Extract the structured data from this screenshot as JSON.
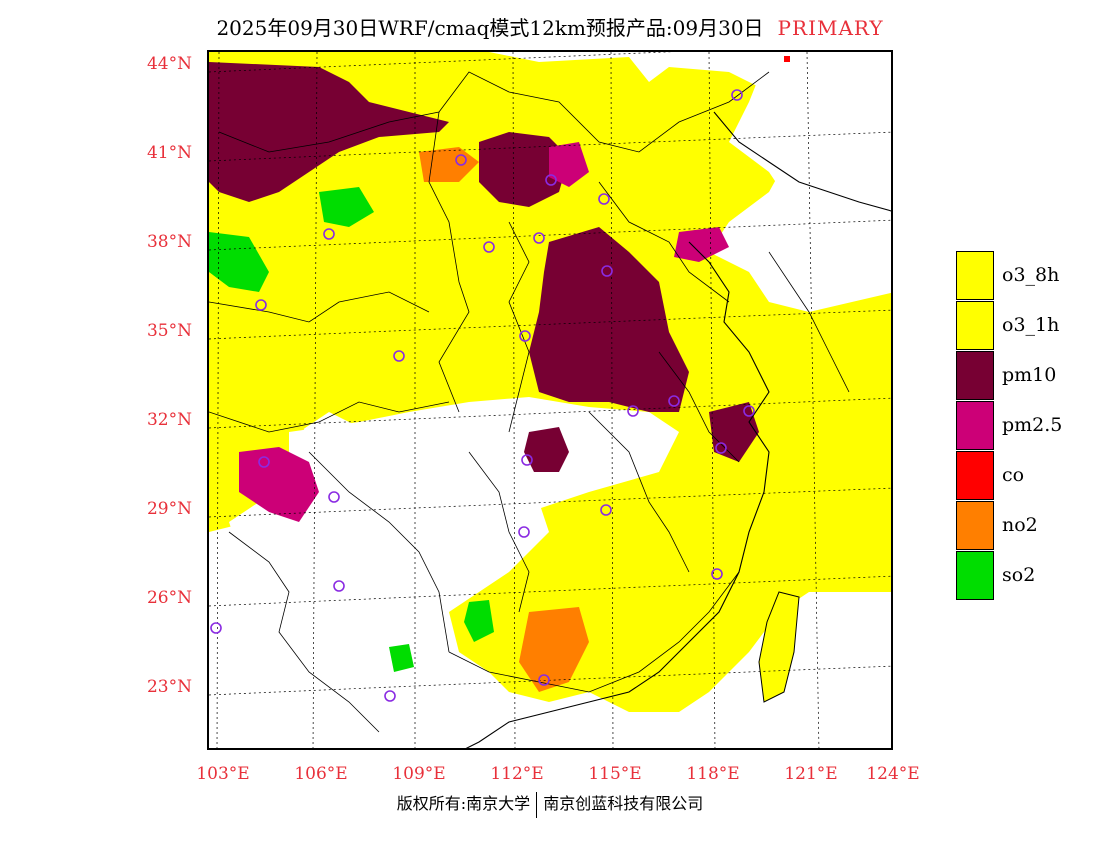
{
  "title": {
    "text": "2025年09月30日WRF/cmaq模式12km预报产品:09月30日",
    "tag": "PRIMARY"
  },
  "axes": {
    "latitudes": [
      "44°N",
      "41°N",
      "38°N",
      "35°N",
      "32°N",
      "29°N",
      "26°N",
      "23°N"
    ],
    "longitudes": [
      "103°E",
      "106°E",
      "109°E",
      "112°E",
      "115°E",
      "118°E",
      "121°E",
      "124°E"
    ],
    "lat_values": [
      44,
      41,
      38,
      35,
      32,
      29,
      26,
      23
    ],
    "lon_values": [
      103,
      106,
      109,
      112,
      115,
      118,
      121,
      124
    ]
  },
  "legend": {
    "items": [
      {
        "label": "o3_8h",
        "color": "#ffff00"
      },
      {
        "label": "o3_1h",
        "color": "#ffff00"
      },
      {
        "label": "pm10",
        "color": "#770033"
      },
      {
        "label": "pm2.5",
        "color": "#cc0077"
      },
      {
        "label": "co",
        "color": "#ff0000"
      },
      {
        "label": "no2",
        "color": "#ff7f00"
      },
      {
        "label": "so2",
        "color": "#00dd00"
      }
    ]
  },
  "footer": {
    "left": "版权所有:南京大学",
    "right": "南京创蓝科技有限公司"
  },
  "colors": {
    "o3": "#ffff00",
    "pm10": "#770033",
    "pm25": "#cc0077",
    "no2": "#ff7f00",
    "so2": "#00dd00",
    "co": "#ff0000",
    "station": "#8a2be2",
    "axis_label": "#e8303a"
  }
}
